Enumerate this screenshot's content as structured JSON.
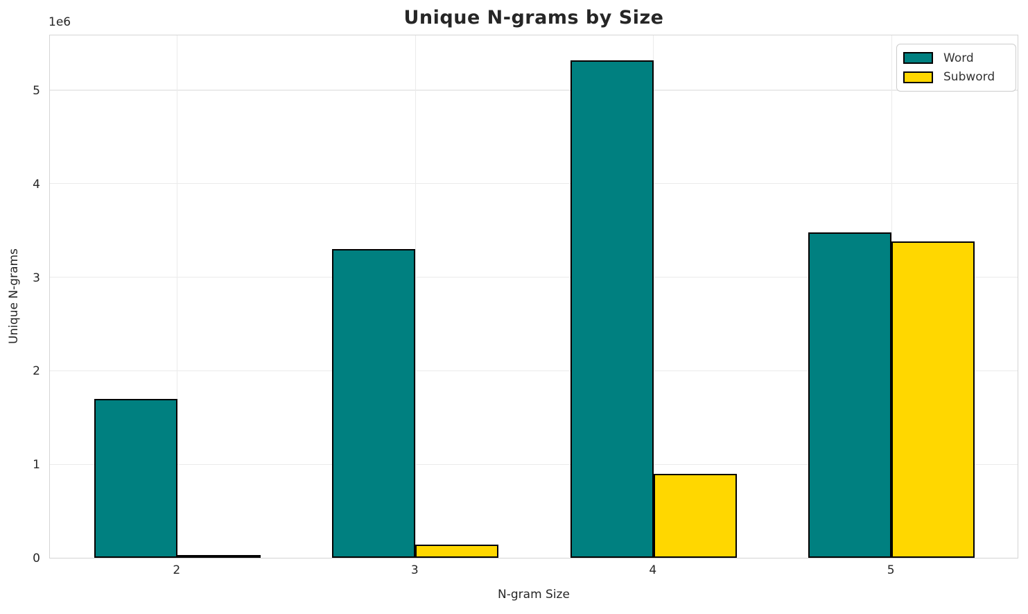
{
  "chart_data": {
    "type": "bar",
    "title": "Unique N-grams by Size",
    "xlabel": "N-gram Size",
    "ylabel": "Unique N-grams",
    "y_offset_label": "1e6",
    "categories": [
      "2",
      "3",
      "4",
      "5"
    ],
    "series": [
      {
        "name": "Word",
        "color": "#008080",
        "values": [
          1700000,
          3300000,
          5320000,
          3480000
        ]
      },
      {
        "name": "Subword",
        "color": "#FFD700",
        "values": [
          20000,
          140000,
          900000,
          3380000
        ]
      }
    ],
    "ylim": [
      0,
      5600000
    ],
    "yticks": [
      0,
      1000000,
      2000000,
      3000000,
      4000000,
      5000000
    ],
    "ytick_labels": [
      "0",
      "1",
      "2",
      "3",
      "4",
      "5"
    ],
    "grid": true,
    "legend_position": "upper right",
    "bar_edge_color": "#000000",
    "background_color": "#ffffff"
  }
}
